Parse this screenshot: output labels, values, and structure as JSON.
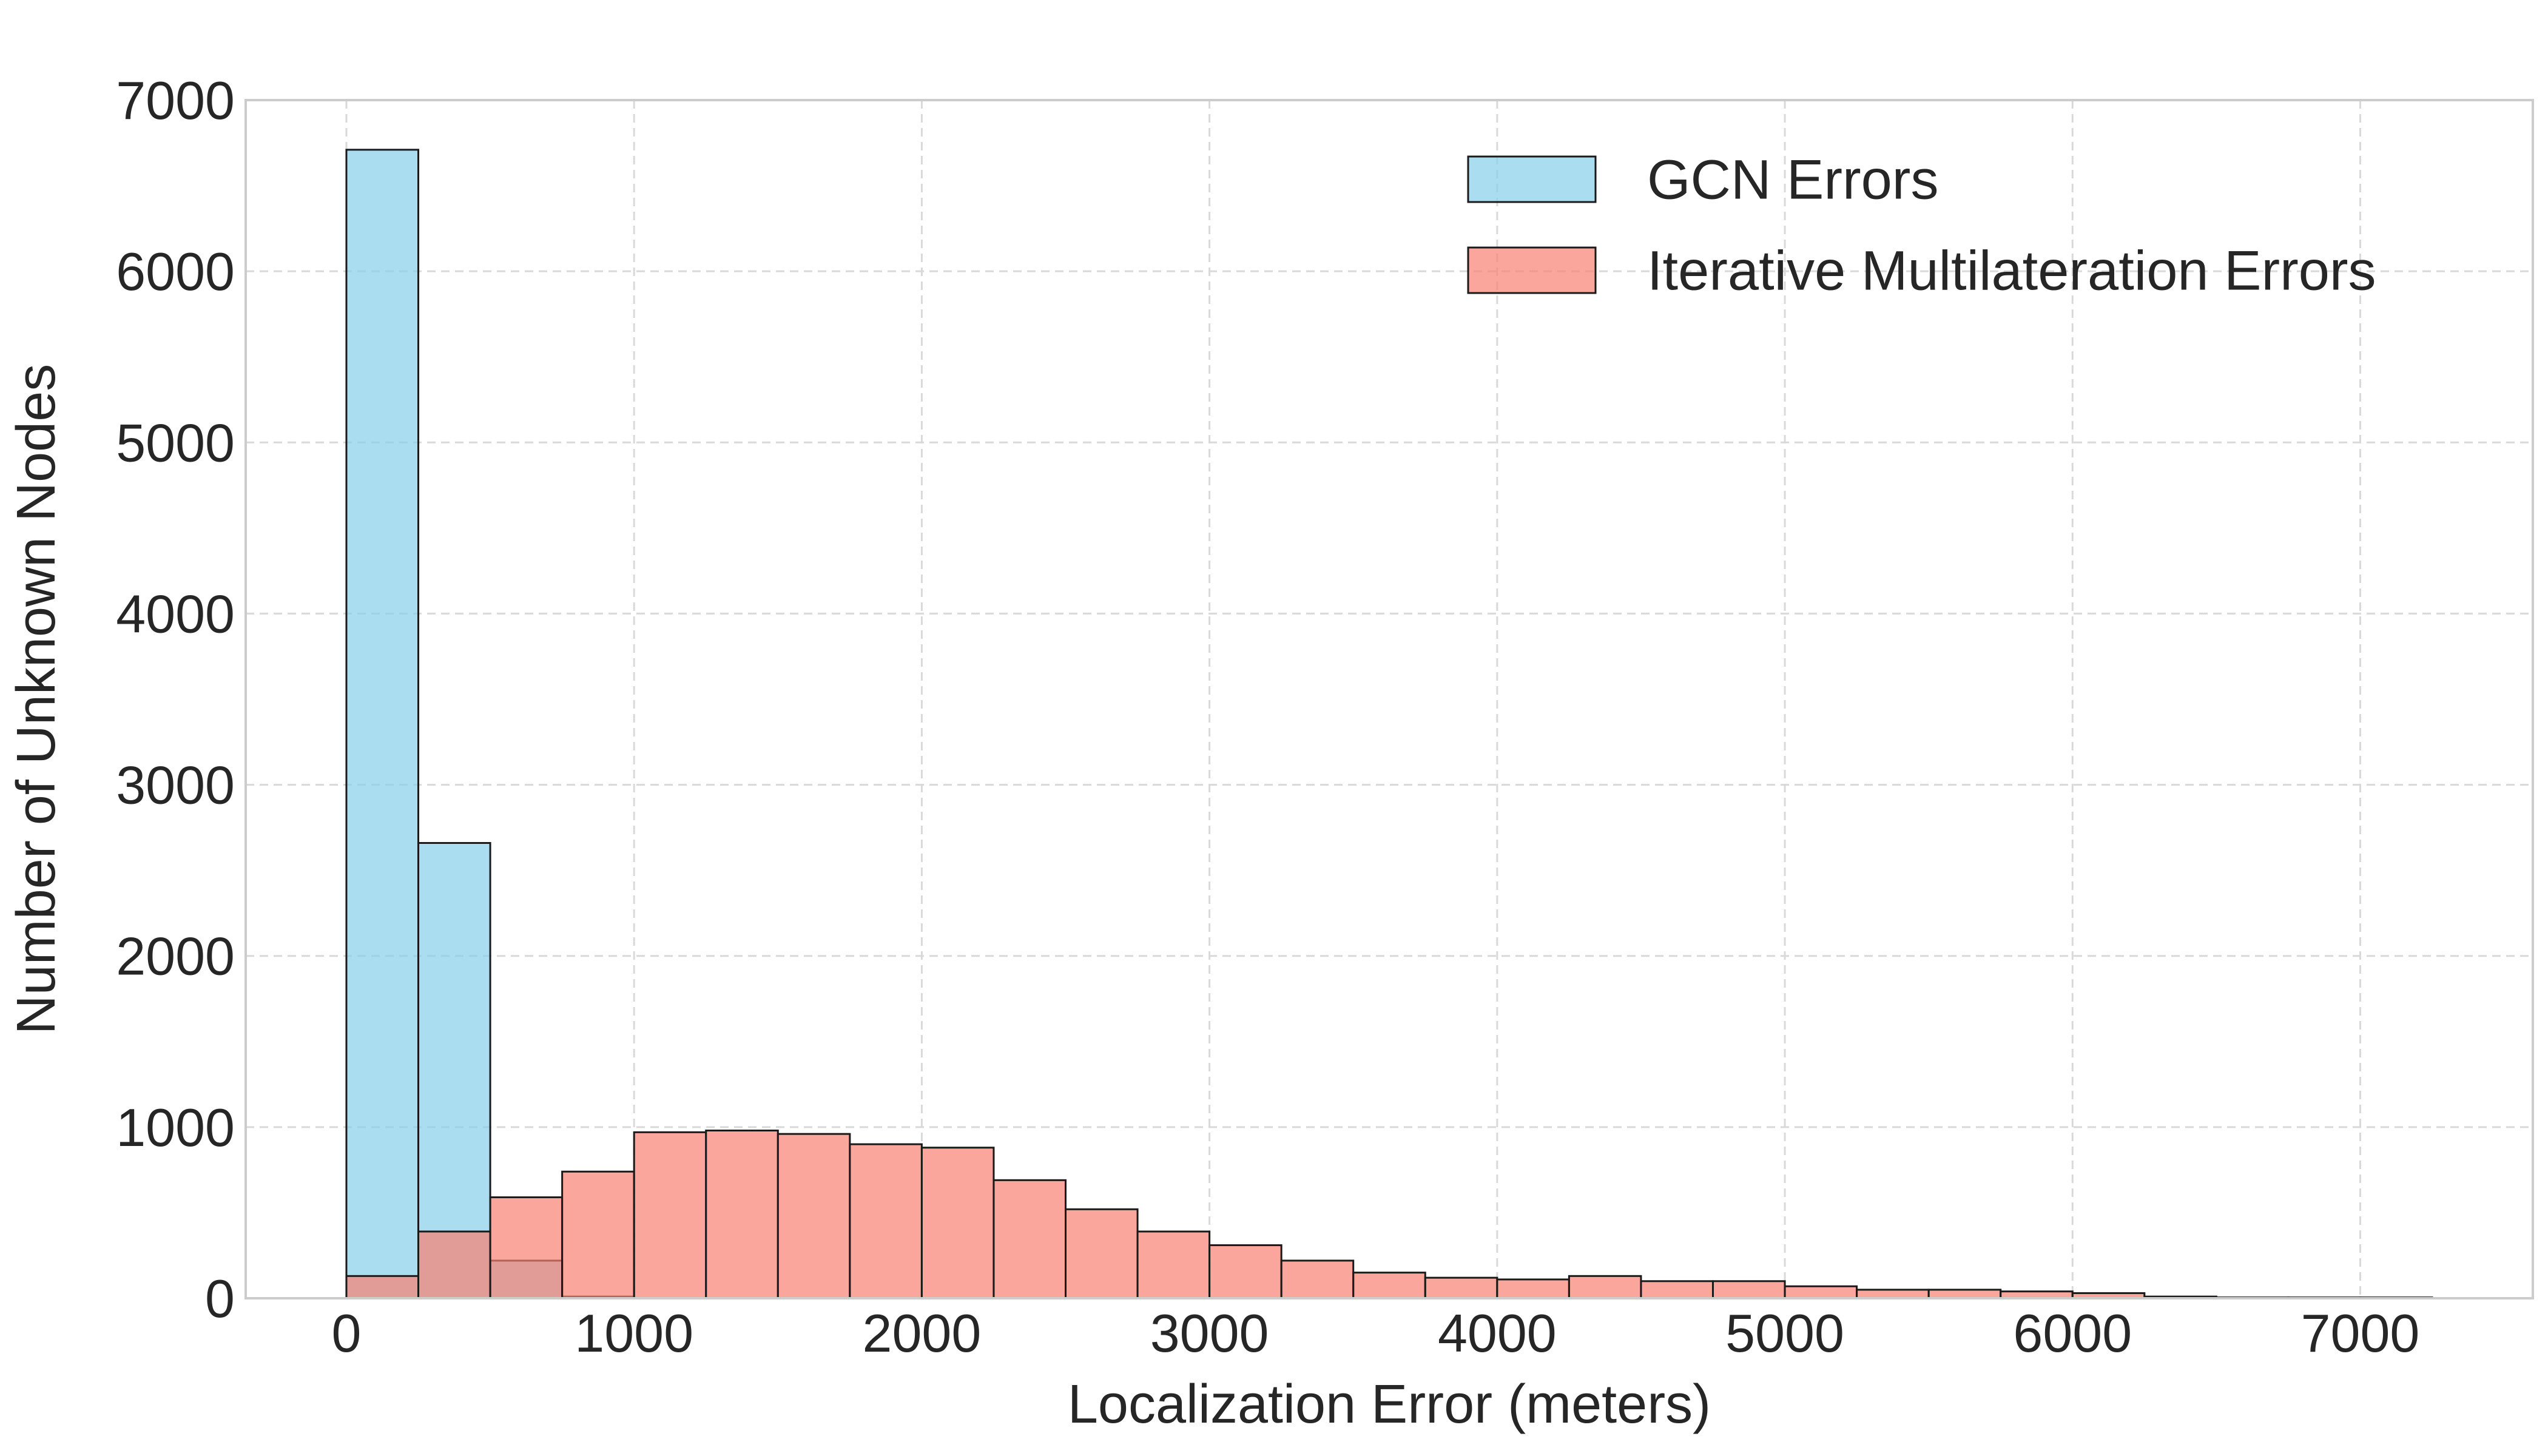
{
  "chart_data": {
    "type": "bar",
    "xlabel": "Localization Error (meters)",
    "ylabel": "Number of Unknown Nodes",
    "xlim": [
      -350,
      7600
    ],
    "ylim": [
      0,
      7000
    ],
    "x_ticks": [
      0,
      1000,
      2000,
      3000,
      4000,
      5000,
      6000,
      7000
    ],
    "y_ticks": [
      0,
      1000,
      2000,
      3000,
      4000,
      5000,
      6000,
      7000
    ],
    "grid": true,
    "legend_position": "top-right",
    "bin_width": 250,
    "bin_starts": [
      0,
      250,
      500,
      750,
      1000,
      1250,
      1500,
      1750,
      2000,
      2250,
      2500,
      2750,
      3000,
      3250,
      3500,
      3750,
      4000,
      4250,
      4500,
      4750,
      5000,
      5250,
      5500,
      5750,
      6000,
      6250,
      6500,
      6750,
      7000
    ],
    "series": [
      {
        "name": "GCN Errors",
        "color": "#87ceeb",
        "opacity": 0.7,
        "values": [
          6710,
          2660,
          220,
          10,
          0,
          0,
          0,
          0,
          0,
          0,
          0,
          0,
          0,
          0,
          0,
          0,
          0,
          0,
          0,
          0,
          0,
          0,
          0,
          0,
          0,
          0,
          0,
          0,
          0
        ]
      },
      {
        "name": "Iterative Multilateration Errors",
        "color": "#fa8072",
        "opacity": 0.7,
        "values": [
          130,
          390,
          590,
          740,
          970,
          980,
          960,
          900,
          880,
          690,
          520,
          390,
          310,
          220,
          150,
          120,
          110,
          130,
          100,
          100,
          70,
          50,
          50,
          40,
          30,
          10,
          5,
          5,
          5
        ]
      }
    ]
  }
}
